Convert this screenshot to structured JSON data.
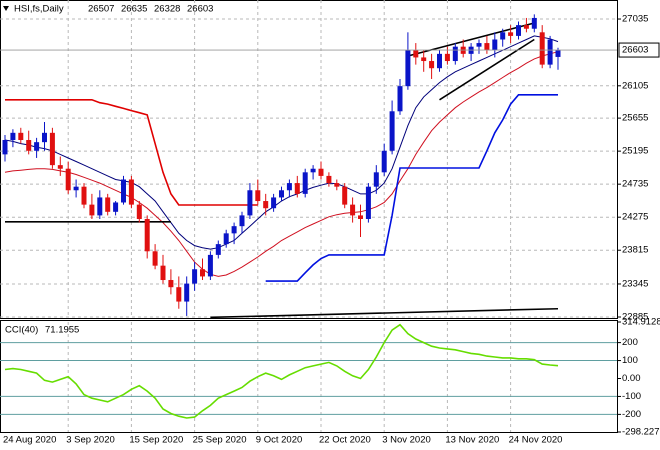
{
  "chart_data": [
    {
      "type": "candlestick",
      "title": "HSI,fs,Daily",
      "categories": [
        "24 Aug 2020",
        null,
        null,
        null,
        null,
        null,
        null,
        null,
        "3 Sep 2020",
        null,
        null,
        null,
        null,
        null,
        null,
        null,
        "15 Sep 2020",
        null,
        null,
        null,
        null,
        null,
        null,
        null,
        "25 Sep 2020",
        null,
        null,
        null,
        null,
        null,
        null,
        null,
        "9 Oct 2020",
        null,
        null,
        null,
        null,
        null,
        null,
        null,
        "22 Oct 2020",
        null,
        null,
        null,
        null,
        null,
        null,
        null,
        "3 Nov 2020",
        null,
        null,
        null,
        null,
        null,
        null,
        null,
        "13 Nov 2020",
        null,
        null,
        null,
        null,
        null,
        null,
        null,
        "24 Nov 2020",
        null,
        null,
        null,
        null,
        null,
        null
      ],
      "open": [
        25150,
        25350,
        25450,
        25350,
        25200,
        25320,
        25450,
        25000,
        24950,
        24650,
        24700,
        24450,
        24300,
        24550,
        24350,
        24480,
        24800,
        24450,
        24250,
        23800,
        23600,
        23400,
        23300,
        23100,
        23350,
        23550,
        23450,
        23750,
        23900,
        24050,
        24150,
        24300,
        24650,
        24500,
        24400,
        24550,
        24650,
        24750,
        24600,
        24900,
        24950,
        24850,
        24750,
        24700,
        24450,
        24300,
        24250,
        24700,
        24900,
        25200,
        25750,
        26100,
        26600,
        26500,
        26450,
        26350,
        26550,
        26450,
        26650,
        26550,
        26650,
        26700,
        26600,
        26750,
        26850,
        26800,
        26950,
        26900,
        26850,
        26400,
        26507
      ],
      "high": [
        25420,
        25500,
        25520,
        25480,
        25380,
        25600,
        25520,
        25120,
        25050,
        24800,
        24750,
        24600,
        24650,
        24600,
        24500,
        24850,
        24850,
        24500,
        24300,
        23900,
        23750,
        23550,
        23450,
        23450,
        23650,
        23700,
        23800,
        23950,
        24100,
        24200,
        24350,
        24750,
        24800,
        24600,
        24600,
        24700,
        24800,
        24850,
        24950,
        25000,
        25050,
        24900,
        24800,
        24750,
        24550,
        24450,
        24750,
        25000,
        25300,
        25900,
        26200,
        26850,
        26700,
        26600,
        26550,
        26600,
        26650,
        26700,
        26750,
        26700,
        26750,
        26800,
        26850,
        26900,
        26950,
        27000,
        27050,
        27100,
        26950,
        26800,
        26635
      ],
      "low": [
        25050,
        25250,
        25300,
        25150,
        25100,
        25200,
        24950,
        24850,
        24600,
        24550,
        24400,
        24250,
        24250,
        24300,
        24300,
        24450,
        24400,
        24200,
        23700,
        23550,
        23350,
        23200,
        23000,
        22900,
        23250,
        23400,
        23400,
        23700,
        23850,
        23900,
        24050,
        24250,
        24450,
        24300,
        24350,
        24500,
        24550,
        24550,
        24550,
        24800,
        24800,
        24700,
        24650,
        24400,
        24200,
        24000,
        24200,
        24600,
        24850,
        25150,
        25700,
        26050,
        26400,
        26300,
        26200,
        26300,
        26400,
        26400,
        26500,
        26450,
        26550,
        26550,
        26500,
        26650,
        26700,
        26750,
        26850,
        26850,
        26350,
        26350,
        26328
      ],
      "close": [
        25350,
        25450,
        25350,
        25200,
        25320,
        25450,
        25000,
        24950,
        24650,
        24700,
        24450,
        24300,
        24550,
        24350,
        24480,
        24800,
        24450,
        24250,
        23800,
        23600,
        23400,
        23300,
        23100,
        23350,
        23550,
        23450,
        23750,
        23900,
        24050,
        24150,
        24300,
        24650,
        24500,
        24400,
        24550,
        24650,
        24750,
        24600,
        24900,
        24950,
        24850,
        24750,
        24700,
        24450,
        24300,
        24250,
        24700,
        24900,
        25200,
        25750,
        26100,
        26600,
        26500,
        26450,
        26350,
        26550,
        26450,
        26650,
        26550,
        26650,
        26700,
        26600,
        26750,
        26850,
        26800,
        26950,
        26900,
        27050,
        26400,
        26750,
        26603
      ],
      "up_color": "#0a14c8",
      "down_color": "#e01010",
      "overlays": [
        {
          "color": "#00007a",
          "values": [
            25350,
            25330,
            25300,
            25280,
            25250,
            25230,
            25200,
            25150,
            25100,
            25050,
            25000,
            24950,
            24900,
            24850,
            24800,
            24780,
            24760,
            24700,
            24600,
            24500,
            24350,
            24200,
            24050,
            23950,
            23880,
            23850,
            23830,
            23850,
            23900,
            23950,
            24050,
            24150,
            24250,
            24350,
            24420,
            24500,
            24560,
            24600,
            24650,
            24690,
            24720,
            24750,
            24740,
            24700,
            24650,
            24600,
            24600,
            24650,
            24750,
            24950,
            25250,
            25550,
            25800,
            25950,
            26050,
            26150,
            26230,
            26300,
            26350,
            26400,
            26450,
            26500,
            26550,
            26600,
            26650,
            26700,
            26750,
            26800,
            26780,
            26760,
            26720
          ]
        },
        {
          "color": "#d01020",
          "values": [
            24900,
            24920,
            24930,
            24940,
            24950,
            24950,
            24940,
            24920,
            24900,
            24870,
            24830,
            24790,
            24750,
            24700,
            24650,
            24600,
            24550,
            24480,
            24400,
            24300,
            24200,
            24080,
            23950,
            23800,
            23650,
            23550,
            23480,
            23450,
            23470,
            23520,
            23580,
            23650,
            23720,
            23800,
            23870,
            23950,
            24010,
            24070,
            24130,
            24180,
            24230,
            24280,
            24310,
            24330,
            24340,
            24350,
            24380,
            24420,
            24480,
            24600,
            24780,
            24950,
            25150,
            25320,
            25480,
            25600,
            25700,
            25800,
            25880,
            25950,
            26020,
            26080,
            26150,
            26220,
            26290,
            26350,
            26420,
            26480,
            26520,
            26550,
            26580
          ]
        },
        {
          "color": "#e00000",
          "values": [
            25910,
            25910,
            25910,
            25910,
            25910,
            25910,
            25910,
            25910,
            25910,
            25910,
            25910,
            25910,
            25870,
            25850,
            25820,
            25790,
            25760,
            25730,
            25700,
            25300,
            24900,
            24600,
            24445,
            24445,
            24445,
            24445,
            24445,
            24445,
            24445,
            24445,
            24445,
            24445,
            24445,
            null,
            null,
            null,
            null,
            null,
            null,
            null,
            null,
            null,
            null,
            null,
            null,
            null,
            null,
            null,
            null,
            null,
            null,
            null,
            null,
            null,
            null,
            null,
            null,
            null,
            null,
            null,
            null,
            null,
            null,
            null,
            null,
            null,
            null,
            null,
            null,
            null,
            null
          ]
        },
        {
          "color": "#0010e0",
          "values": [
            null,
            null,
            null,
            null,
            null,
            null,
            null,
            null,
            null,
            null,
            null,
            null,
            null,
            null,
            null,
            null,
            null,
            null,
            null,
            null,
            null,
            null,
            null,
            null,
            null,
            null,
            null,
            null,
            null,
            null,
            null,
            null,
            null,
            23385,
            23385,
            23385,
            23385,
            23385,
            23500,
            23610,
            23700,
            23750,
            23750,
            23750,
            23750,
            23750,
            23750,
            23750,
            23750,
            24300,
            24960,
            24960,
            24960,
            24960,
            24960,
            24960,
            24960,
            24960,
            24960,
            24960,
            24960,
            25200,
            25450,
            25630,
            25850,
            25980,
            25980,
            25980,
            25980,
            25980,
            25980
          ]
        }
      ],
      "trendlines": [
        {
          "color": "#000000",
          "x": [
            0,
            21
          ],
          "y": [
            24210,
            24210
          ]
        },
        {
          "color": "#000000",
          "x": [
            51,
            67
          ],
          "y": [
            26520,
            26980
          ]
        },
        {
          "color": "#000000",
          "x": [
            55,
            67
          ],
          "y": [
            25910,
            26750
          ]
        },
        {
          "color": "#000000",
          "x": [
            26,
            70
          ],
          "y": [
            22880,
            23000
          ]
        }
      ],
      "ylim": [
        22871,
        27300
      ],
      "yticks": [
        27035,
        26105,
        25655,
        25195,
        24735,
        24275,
        23815,
        23345,
        22885
      ],
      "grid": true
    },
    {
      "type": "line",
      "title": "CCI(40)",
      "series": [
        {
          "color": "#66dd00",
          "values": [
            50,
            55,
            50,
            40,
            30,
            -10,
            -20,
            -5,
            10,
            -30,
            -90,
            -110,
            -120,
            -130,
            -110,
            -90,
            -60,
            -40,
            -70,
            -110,
            -170,
            -195,
            -210,
            -220,
            -215,
            -180,
            -150,
            -110,
            -90,
            -70,
            -50,
            -15,
            10,
            30,
            15,
            -5,
            20,
            40,
            60,
            70,
            80,
            90,
            70,
            40,
            15,
            0,
            50,
            120,
            200,
            270,
            300,
            250,
            220,
            200,
            180,
            170,
            165,
            160,
            150,
            140,
            135,
            125,
            120,
            115,
            115,
            110,
            110,
            105,
            80,
            75,
            71.1955
          ]
        }
      ],
      "ylim": [
        -298.227,
        314.9128
      ],
      "yticks": [
        314.9128,
        200,
        100,
        {
          "value": 0,
          "label": "0.00"
        },
        -100,
        -200,
        -298.227
      ],
      "levels": [
        200,
        100,
        -100,
        -200
      ],
      "level_color": "#5f9ea0"
    }
  ]
}
